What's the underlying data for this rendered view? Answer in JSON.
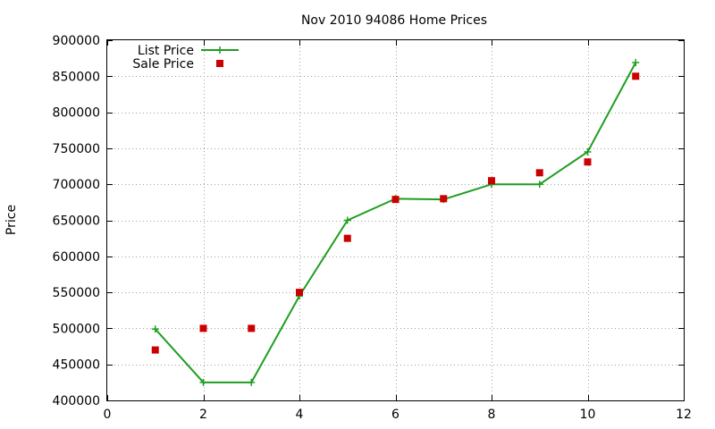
{
  "chart_data": {
    "type": "line",
    "title": "Nov 2010 94086 Home Prices",
    "xlabel": "",
    "ylabel": "Price",
    "xlim": [
      0,
      12
    ],
    "ylim": [
      400000,
      900000
    ],
    "x_ticks": [
      0,
      2,
      4,
      6,
      8,
      10,
      12
    ],
    "x_tick_labels": [
      "0",
      "2",
      "4",
      "6",
      "8",
      "10",
      "12"
    ],
    "y_ticks": [
      400000,
      450000,
      500000,
      550000,
      600000,
      650000,
      700000,
      750000,
      800000,
      850000,
      900000
    ],
    "y_tick_labels": [
      "400000",
      "450000",
      "500000",
      "550000",
      "600000",
      "650000",
      "700000",
      "750000",
      "800000",
      "850000",
      "900000"
    ],
    "grid": true,
    "legend_position": "top-left",
    "series": [
      {
        "name": "List Price",
        "style": "line with plus markers",
        "color": "#1f9e1f",
        "x": [
          1,
          2,
          3,
          4,
          5,
          6,
          7,
          8,
          9,
          10,
          11
        ],
        "y": [
          499000,
          425000,
          425000,
          545000,
          650000,
          680000,
          679000,
          700000,
          700000,
          745000,
          869000
        ]
      },
      {
        "name": "Sale Price",
        "style": "square markers",
        "color": "#cc0000",
        "x": [
          1,
          2,
          3,
          4,
          5,
          6,
          7,
          8,
          9,
          10,
          11
        ],
        "y": [
          470000,
          500000,
          500000,
          550000,
          625000,
          679000,
          680000,
          705000,
          716000,
          731000,
          850000
        ]
      }
    ]
  }
}
